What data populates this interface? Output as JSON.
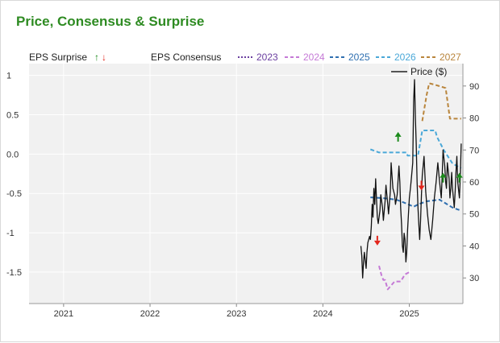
{
  "page": {
    "title": "Price, Consensus & Surprise"
  },
  "colors": {
    "plot_bg": "#f1f1f1",
    "grid": "#ffffff",
    "price": "#111111",
    "up": "#1a8a1a",
    "down": "#e3261c",
    "c2023": "#6b3fa0",
    "c2024": "#c57ad6",
    "c2025": "#2f6fb0",
    "c2026": "#4aa8d8",
    "c2027": "#b9853c"
  },
  "chart_data": {
    "type": "line",
    "title": "Price, Consensus & Surprise",
    "x_axis": {
      "ticks": [
        "2021",
        "2022",
        "2023",
        "2024",
        "2025"
      ],
      "range": [
        2020.6,
        2025.62
      ]
    },
    "y_left": {
      "label": "EPS Surprise / EPS Consensus",
      "ticks": [
        "1",
        "0.5",
        "0.0",
        "-0.5",
        "-1",
        "-1.5"
      ],
      "range": [
        -1.9,
        1.15
      ]
    },
    "y_right": {
      "label": "Price ($)",
      "ticks": [
        "90",
        "80",
        "70",
        "60",
        "50",
        "40",
        "30"
      ],
      "range": [
        22,
        97
      ]
    },
    "legend": {
      "surprise_label": "EPS Surprise",
      "up_arrow": "↑",
      "down_arrow": "↓",
      "consensus_label": "EPS Consensus",
      "price_label": "Price ($)"
    },
    "series": [
      {
        "name": "2023",
        "style": "dotted",
        "color": "#6b3fa0",
        "points": []
      },
      {
        "name": "2024",
        "style": "dashed",
        "color": "#c57ad6",
        "points": [
          [
            2024.65,
            -1.42
          ],
          [
            2024.68,
            -1.55
          ],
          [
            2024.7,
            -1.6
          ],
          [
            2024.72,
            -1.6
          ],
          [
            2024.75,
            -1.72
          ],
          [
            2024.83,
            -1.62
          ],
          [
            2024.9,
            -1.62
          ],
          [
            2024.95,
            -1.53
          ],
          [
            2025.0,
            -1.5
          ]
        ]
      },
      {
        "name": "2025",
        "style": "dashed",
        "color": "#2f6fb0",
        "points": [
          [
            2024.55,
            -0.55
          ],
          [
            2024.7,
            -0.56
          ],
          [
            2024.85,
            -0.58
          ],
          [
            2024.97,
            -0.63
          ],
          [
            2025.05,
            -0.67
          ],
          [
            2025.1,
            -0.64
          ],
          [
            2025.2,
            -0.6
          ],
          [
            2025.35,
            -0.58
          ],
          [
            2025.5,
            -0.68
          ],
          [
            2025.6,
            -0.72
          ]
        ]
      },
      {
        "name": "2026",
        "style": "dashed",
        "color": "#4aa8d8",
        "points": [
          [
            2024.55,
            0.06
          ],
          [
            2024.65,
            0.02
          ],
          [
            2024.97,
            0.02
          ],
          [
            2024.98,
            -0.02
          ],
          [
            2025.1,
            -0.02
          ],
          [
            2025.15,
            0.3
          ],
          [
            2025.3,
            0.3
          ],
          [
            2025.32,
            0.22
          ],
          [
            2025.4,
            0.05
          ],
          [
            2025.5,
            -0.12
          ],
          [
            2025.6,
            -0.18
          ]
        ]
      },
      {
        "name": "2027",
        "style": "dashed",
        "color": "#b9853c",
        "points": [
          [
            2025.15,
            0.42
          ],
          [
            2025.2,
            0.75
          ],
          [
            2025.23,
            0.9
          ],
          [
            2025.3,
            0.88
          ],
          [
            2025.42,
            0.84
          ],
          [
            2025.47,
            0.45
          ],
          [
            2025.6,
            0.45
          ]
        ]
      },
      {
        "name": "Price ($)",
        "axis": "right",
        "style": "solid",
        "color": "#111111",
        "points": [
          [
            2024.44,
            40
          ],
          [
            2024.45,
            37
          ],
          [
            2024.46,
            30
          ],
          [
            2024.47,
            35
          ],
          [
            2024.48,
            38
          ],
          [
            2024.5,
            33
          ],
          [
            2024.51,
            38
          ],
          [
            2024.52,
            41
          ],
          [
            2024.54,
            43
          ],
          [
            2024.55,
            42
          ],
          [
            2024.56,
            46
          ],
          [
            2024.57,
            53
          ],
          [
            2024.58,
            49
          ],
          [
            2024.59,
            58
          ],
          [
            2024.6,
            53
          ],
          [
            2024.61,
            61
          ],
          [
            2024.62,
            55
          ],
          [
            2024.63,
            49
          ],
          [
            2024.64,
            47
          ],
          [
            2024.66,
            51
          ],
          [
            2024.67,
            56
          ],
          [
            2024.69,
            52
          ],
          [
            2024.7,
            48
          ],
          [
            2024.72,
            54
          ],
          [
            2024.73,
            59
          ],
          [
            2024.75,
            53
          ],
          [
            2024.76,
            50
          ],
          [
            2024.78,
            57
          ],
          [
            2024.79,
            66
          ],
          [
            2024.8,
            62
          ],
          [
            2024.81,
            58
          ],
          [
            2024.83,
            56
          ],
          [
            2024.84,
            53
          ],
          [
            2024.86,
            56
          ],
          [
            2024.88,
            65
          ],
          [
            2024.89,
            60
          ],
          [
            2024.9,
            52
          ],
          [
            2024.91,
            47
          ],
          [
            2024.92,
            40
          ],
          [
            2024.93,
            38
          ],
          [
            2024.94,
            44
          ],
          [
            2024.95,
            42
          ],
          [
            2024.96,
            35
          ],
          [
            2024.97,
            38
          ],
          [
            2024.98,
            45
          ],
          [
            2024.99,
            50
          ],
          [
            2025.0,
            55
          ],
          [
            2025.02,
            60
          ],
          [
            2025.04,
            66
          ],
          [
            2025.05,
            85
          ],
          [
            2025.06,
            92
          ],
          [
            2025.07,
            80
          ],
          [
            2025.08,
            72
          ],
          [
            2025.09,
            60
          ],
          [
            2025.1,
            52
          ],
          [
            2025.11,
            47
          ],
          [
            2025.12,
            42
          ],
          [
            2025.13,
            48
          ],
          [
            2025.14,
            56
          ],
          [
            2025.15,
            62
          ],
          [
            2025.17,
            68
          ],
          [
            2025.19,
            57
          ],
          [
            2025.21,
            50
          ],
          [
            2025.23,
            45
          ],
          [
            2025.25,
            42
          ],
          [
            2025.27,
            48
          ],
          [
            2025.29,
            55
          ],
          [
            2025.31,
            60
          ],
          [
            2025.33,
            66
          ],
          [
            2025.35,
            60
          ],
          [
            2025.37,
            55
          ],
          [
            2025.38,
            62
          ],
          [
            2025.39,
            70
          ],
          [
            2025.41,
            65
          ],
          [
            2025.42,
            60
          ],
          [
            2025.43,
            58
          ],
          [
            2025.44,
            66
          ],
          [
            2025.46,
            61
          ],
          [
            2025.47,
            55
          ],
          [
            2025.48,
            58
          ],
          [
            2025.49,
            63
          ],
          [
            2025.5,
            58
          ],
          [
            2025.51,
            55
          ],
          [
            2025.52,
            52
          ],
          [
            2025.53,
            57
          ],
          [
            2025.54,
            63
          ],
          [
            2025.55,
            68
          ],
          [
            2025.56,
            60
          ],
          [
            2025.58,
            55
          ],
          [
            2025.59,
            62
          ],
          [
            2025.6,
            72
          ]
        ]
      }
    ],
    "surprises": [
      {
        "x": 2024.63,
        "y": -1.1,
        "dir": "down"
      },
      {
        "x": 2024.87,
        "y": 0.22,
        "dir": "up"
      },
      {
        "x": 2025.14,
        "y": -0.4,
        "dir": "down"
      },
      {
        "x": 2025.39,
        "y": -0.3,
        "dir": "up"
      },
      {
        "x": 2025.58,
        "y": -0.3,
        "dir": "up"
      }
    ],
    "grid": true,
    "legend_position": "top"
  }
}
